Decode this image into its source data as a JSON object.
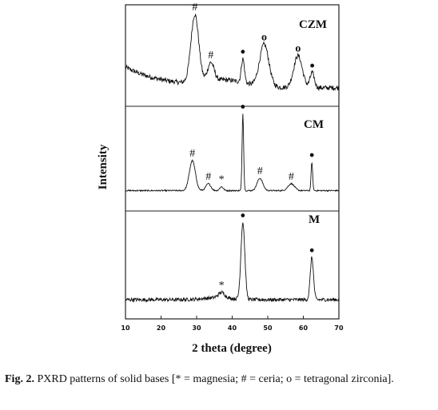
{
  "chart_data": {
    "type": "line",
    "xlabel": "2 theta (degree)",
    "ylabel": "Intensity",
    "xlim": [
      10,
      70
    ],
    "xticks": [
      "10",
      "20",
      "30",
      "40",
      "50",
      "60",
      "70"
    ],
    "grid": false,
    "series": [
      {
        "name": "CZM",
        "peaks": [
          {
            "x": 29.5,
            "label": "#",
            "height": 1.0,
            "width": 1.1
          },
          {
            "x": 34.0,
            "label": "#",
            "height": 0.27,
            "width": 0.9
          },
          {
            "x": 43.0,
            "label": "•",
            "height": 0.35,
            "width": 0.45
          },
          {
            "x": 49.0,
            "label": "o",
            "height": 0.62,
            "width": 1.3
          },
          {
            "x": 58.5,
            "label": "o",
            "height": 0.47,
            "width": 1.2
          },
          {
            "x": 62.5,
            "label": "•",
            "height": 0.22,
            "width": 0.6
          }
        ]
      },
      {
        "name": "CM",
        "peaks": [
          {
            "x": 28.8,
            "label": "#",
            "height": 0.39,
            "width": 0.85
          },
          {
            "x": 33.3,
            "label": "#",
            "height": 0.09,
            "width": 0.7
          },
          {
            "x": 37.0,
            "label": "*",
            "height": 0.05,
            "width": 0.5
          },
          {
            "x": 43.0,
            "label": "•",
            "height": 1.0,
            "width": 0.22
          },
          {
            "x": 47.8,
            "label": "#",
            "height": 0.16,
            "width": 0.8
          },
          {
            "x": 56.6,
            "label": "#",
            "height": 0.09,
            "width": 0.9
          },
          {
            "x": 62.4,
            "label": "•",
            "height": 0.37,
            "width": 0.22
          }
        ]
      },
      {
        "name": "M",
        "peaks": [
          {
            "x": 37.0,
            "label": "*",
            "height": 0.07,
            "width": 0.9
          },
          {
            "x": 43.0,
            "label": "•",
            "height": 1.0,
            "width": 0.55
          },
          {
            "x": 62.4,
            "label": "•",
            "height": 0.55,
            "width": 0.45
          }
        ]
      }
    ]
  },
  "caption": {
    "prefix": "Fig. 2.",
    "text": " PXRD patterns of solid bases [* = magnesia; # = ceria; o = tetragonal zirconia]."
  }
}
